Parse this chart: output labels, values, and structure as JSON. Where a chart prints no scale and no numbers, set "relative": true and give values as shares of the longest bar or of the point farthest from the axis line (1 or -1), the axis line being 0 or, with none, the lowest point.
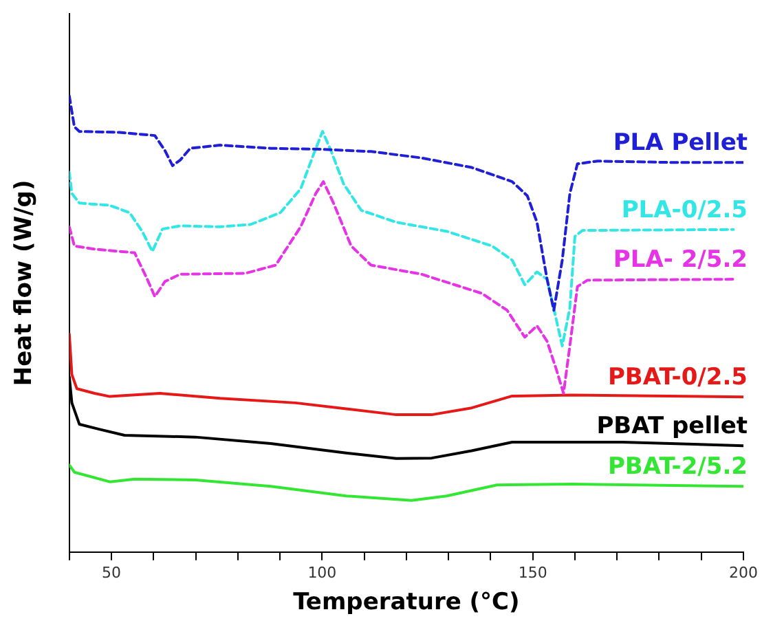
{
  "chart_data": {
    "type": "line",
    "relative": true,
    "xlabel": "Temperature (°C)",
    "ylabel": "Heat flow (W/g)",
    "xlim": [
      40,
      200
    ],
    "xticks": [
      {
        "value": 40,
        "label": null
      },
      50,
      {
        "value": 60,
        "label": null
      },
      {
        "value": 70,
        "label": null
      },
      {
        "value": 80,
        "label": null
      },
      {
        "value": 90,
        "label": null
      },
      100,
      {
        "value": 110,
        "label": null
      },
      {
        "value": 120,
        "label": null
      },
      {
        "value": 130,
        "label": null
      },
      {
        "value": 140,
        "label": null
      },
      150,
      {
        "value": 160,
        "label": null
      },
      {
        "value": 170,
        "label": null
      },
      {
        "value": 180,
        "label": null
      },
      {
        "value": 190,
        "label": null
      },
      200
    ],
    "marker": "none",
    "legend": false,
    "series": [
      {
        "name": "PLA Pellet",
        "color": "#1f1fd6",
        "line_style": "dashed",
        "x": [
          40,
          41.2,
          42.4,
          51.9,
          60.3,
          62.7,
          64.5,
          66.3,
          68.7,
          75.8,
          87.8,
          99.7,
          111.6,
          123.6,
          135.5,
          145.1,
          148.7,
          151,
          153.4,
          155,
          157,
          158.8,
          160.6,
          165.4,
          183.3,
          200
        ],
        "values": [
          1.0,
          0.932,
          0.922,
          0.92,
          0.913,
          0.88,
          0.847,
          0.859,
          0.885,
          0.892,
          0.885,
          0.883,
          0.878,
          0.864,
          0.843,
          0.812,
          0.781,
          0.723,
          0.598,
          0.53,
          0.64,
          0.786,
          0.851,
          0.857,
          0.854,
          0.854
        ]
      },
      {
        "name": "PLA-0/2.5",
        "color": "#33e6e6",
        "line_style": "dashed",
        "x": [
          40,
          40.6,
          42.4,
          49.6,
          54.3,
          57.3,
          59.7,
          62.1,
          66.3,
          75.8,
          83,
          90.1,
          94.9,
          97.9,
          100.1,
          102.1,
          105.1,
          109.3,
          117.6,
          129.6,
          140.3,
          145.1,
          148.1,
          151,
          153.4,
          155.2,
          157,
          158.8,
          160,
          161.8,
          197.6
        ],
        "values": [
          0.833,
          0.786,
          0.765,
          0.76,
          0.744,
          0.703,
          0.659,
          0.708,
          0.715,
          0.713,
          0.718,
          0.744,
          0.796,
          0.87,
          0.922,
          0.88,
          0.807,
          0.749,
          0.723,
          0.703,
          0.671,
          0.64,
          0.586,
          0.614,
          0.598,
          0.525,
          0.452,
          0.535,
          0.692,
          0.705,
          0.707
        ]
      },
      {
        "name": "PLA- 2/5.2",
        "color": "#e633e6",
        "line_style": "dashed",
        "x": [
          40,
          41.2,
          46,
          55.5,
          58.5,
          60.3,
          62.7,
          66.3,
          81.8,
          89,
          94.9,
          98.5,
          100.3,
          102.7,
          106.9,
          111.6,
          123.6,
          137.9,
          143.9,
          148.1,
          151,
          153.4,
          155.6,
          157.3,
          158.8,
          160.6,
          163,
          197.6
        ],
        "values": [
          0.713,
          0.671,
          0.664,
          0.656,
          0.598,
          0.56,
          0.593,
          0.609,
          0.611,
          0.629,
          0.713,
          0.786,
          0.812,
          0.765,
          0.671,
          0.629,
          0.609,
          0.567,
          0.53,
          0.471,
          0.496,
          0.462,
          0.4,
          0.348,
          0.452,
          0.582,
          0.596,
          0.598
        ]
      },
      {
        "name": "PBAT-0/2.5",
        "color": "#e61919",
        "line_style": "solid",
        "x": [
          40,
          40.6,
          41.8,
          46,
          49.6,
          61.5,
          75.8,
          93.7,
          105.7,
          117.6,
          126,
          135.5,
          145.1,
          159.4,
          200
        ],
        "values": [
          0.478,
          0.389,
          0.358,
          0.348,
          0.341,
          0.348,
          0.337,
          0.327,
          0.314,
          0.301,
          0.301,
          0.316,
          0.342,
          0.344,
          0.34
        ]
      },
      {
        "name": "PBAT pellet",
        "color": "#000000",
        "line_style": "solid",
        "x": [
          40,
          40.6,
          42.4,
          47.2,
          53.1,
          69.9,
          87.8,
          105.7,
          117.6,
          126,
          135.5,
          145.1,
          171.3,
          200
        ],
        "values": [
          0.384,
          0.327,
          0.28,
          0.269,
          0.256,
          0.252,
          0.238,
          0.217,
          0.205,
          0.206,
          0.222,
          0.241,
          0.241,
          0.233
        ]
      },
      {
        "name": "PBAT-2/5.2",
        "color": "#33e633",
        "line_style": "solid",
        "x": [
          40,
          41.2,
          49.6,
          55.5,
          69.9,
          87.8,
          105.7,
          121.2,
          129.6,
          141.5,
          159.4,
          200
        ],
        "values": [
          0.191,
          0.175,
          0.154,
          0.16,
          0.158,
          0.144,
          0.123,
          0.113,
          0.123,
          0.147,
          0.149,
          0.144
        ]
      }
    ]
  }
}
